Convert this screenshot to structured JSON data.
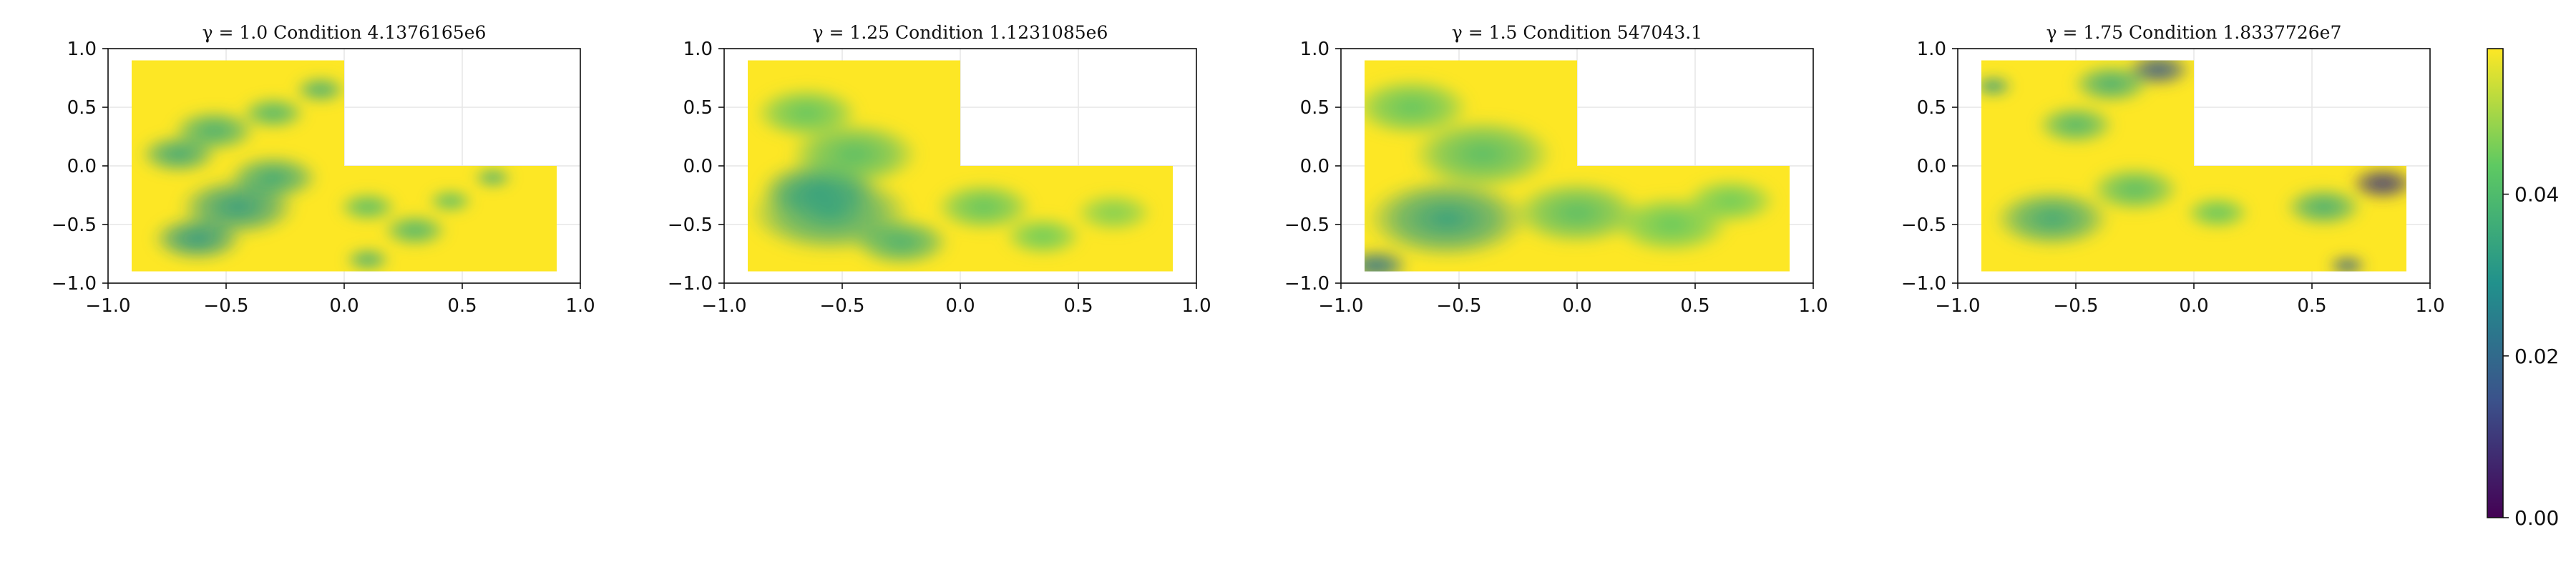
{
  "figure": {
    "type": "heatmap",
    "colormap": "viridis",
    "colormap_stops": [
      "#440154",
      "#3b528b",
      "#21918c",
      "#5ec962",
      "#fde725"
    ],
    "grid_color": "#e6e6e6"
  },
  "chart_data": [
    {
      "type": "heatmap",
      "title": "γ = 1.0  Condition 4.1376165e6",
      "xlim": [
        -1.0,
        1.0
      ],
      "ylim": [
        -1.0,
        1.0
      ],
      "x_ticks": [
        "−1.0",
        "−0.5",
        "0.0",
        "0.5",
        "1.0"
      ],
      "y_ticks": [
        "−1.0",
        "−0.5",
        "0.0",
        "0.5",
        "1.0"
      ],
      "domain": "L-shape: [-0.9,0.9]x[-0.9,0] ∪ [-0.9,0]x[0,0.9]",
      "blobs": [
        {
          "x": -0.62,
          "y": -0.62,
          "r": 0.14,
          "v": 0.03
        },
        {
          "x": -0.45,
          "y": -0.35,
          "r": 0.18,
          "v": 0.031
        },
        {
          "x": -0.3,
          "y": -0.1,
          "r": 0.14,
          "v": 0.034
        },
        {
          "x": -0.7,
          "y": 0.1,
          "r": 0.12,
          "v": 0.034
        },
        {
          "x": -0.55,
          "y": 0.3,
          "r": 0.13,
          "v": 0.036
        },
        {
          "x": -0.3,
          "y": 0.45,
          "r": 0.1,
          "v": 0.038
        },
        {
          "x": -0.1,
          "y": 0.65,
          "r": 0.08,
          "v": 0.036
        },
        {
          "x": 0.1,
          "y": -0.8,
          "r": 0.07,
          "v": 0.036
        },
        {
          "x": 0.3,
          "y": -0.55,
          "r": 0.1,
          "v": 0.038
        },
        {
          "x": 0.1,
          "y": -0.35,
          "r": 0.09,
          "v": 0.04
        },
        {
          "x": 0.63,
          "y": -0.1,
          "r": 0.06,
          "v": 0.036
        },
        {
          "x": 0.45,
          "y": -0.3,
          "r": 0.07,
          "v": 0.04
        }
      ]
    },
    {
      "type": "heatmap",
      "title": "γ = 1.25  Condition 1.1231085e6",
      "xlim": [
        -1.0,
        1.0
      ],
      "ylim": [
        -1.0,
        1.0
      ],
      "x_ticks": [
        "−1.0",
        "−0.5",
        "0.0",
        "0.5",
        "1.0"
      ],
      "y_ticks": [
        "−1.0",
        "−0.5",
        "0.0",
        "0.5",
        "1.0"
      ],
      "domain": "L-shape: [-0.9,0.9]x[-0.9,0] ∪ [-0.9,0]x[0,0.9]",
      "blobs": [
        {
          "x": -0.55,
          "y": -0.4,
          "r": 0.25,
          "v": 0.034
        },
        {
          "x": -0.6,
          "y": -0.2,
          "r": 0.18,
          "v": 0.033
        },
        {
          "x": -0.45,
          "y": 0.1,
          "r": 0.2,
          "v": 0.04
        },
        {
          "x": -0.65,
          "y": 0.45,
          "r": 0.16,
          "v": 0.042
        },
        {
          "x": -0.25,
          "y": -0.65,
          "r": 0.15,
          "v": 0.036
        },
        {
          "x": 0.1,
          "y": -0.35,
          "r": 0.15,
          "v": 0.042
        },
        {
          "x": 0.35,
          "y": -0.6,
          "r": 0.12,
          "v": 0.044
        },
        {
          "x": 0.65,
          "y": -0.4,
          "r": 0.12,
          "v": 0.046
        }
      ]
    },
    {
      "type": "heatmap",
      "title": "γ = 1.5  Condition 547043.1",
      "xlim": [
        -1.0,
        1.0
      ],
      "ylim": [
        -1.0,
        1.0
      ],
      "x_ticks": [
        "−1.0",
        "−0.5",
        "0.0",
        "0.5",
        "1.0"
      ],
      "y_ticks": [
        "−1.0",
        "−0.5",
        "0.0",
        "0.5",
        "1.0"
      ],
      "domain": "L-shape: [-0.9,0.9]x[-0.9,0] ∪ [-0.9,0]x[0,0.9]",
      "blobs": [
        {
          "x": -0.55,
          "y": -0.45,
          "r": 0.25,
          "v": 0.032
        },
        {
          "x": -0.85,
          "y": -0.85,
          "r": 0.1,
          "v": 0.022
        },
        {
          "x": -0.4,
          "y": 0.1,
          "r": 0.22,
          "v": 0.04
        },
        {
          "x": -0.7,
          "y": 0.5,
          "r": 0.18,
          "v": 0.042
        },
        {
          "x": 0.0,
          "y": -0.4,
          "r": 0.2,
          "v": 0.04
        },
        {
          "x": 0.4,
          "y": -0.5,
          "r": 0.18,
          "v": 0.043
        },
        {
          "x": 0.65,
          "y": -0.3,
          "r": 0.14,
          "v": 0.044
        }
      ]
    },
    {
      "type": "heatmap",
      "title": "γ = 1.75  Condition 1.8337726e7",
      "xlim": [
        -1.0,
        1.0
      ],
      "ylim": [
        -1.0,
        1.0
      ],
      "x_ticks": [
        "−1.0",
        "−0.5",
        "0.0",
        "0.5",
        "1.0"
      ],
      "y_ticks": [
        "−1.0",
        "−0.5",
        "0.0",
        "0.5",
        "1.0"
      ],
      "domain": "L-shape: [-0.9,0.9]x[-0.9,0] ∪ [-0.9,0]x[0,0.9]",
      "blobs": [
        {
          "x": -0.15,
          "y": 0.82,
          "r": 0.1,
          "v": 0.016
        },
        {
          "x": -0.35,
          "y": 0.7,
          "r": 0.12,
          "v": 0.036
        },
        {
          "x": -0.85,
          "y": 0.68,
          "r": 0.06,
          "v": 0.03
        },
        {
          "x": -0.5,
          "y": 0.35,
          "r": 0.12,
          "v": 0.038
        },
        {
          "x": -0.6,
          "y": -0.45,
          "r": 0.18,
          "v": 0.034
        },
        {
          "x": -0.25,
          "y": -0.2,
          "r": 0.14,
          "v": 0.04
        },
        {
          "x": 0.8,
          "y": -0.15,
          "r": 0.1,
          "v": 0.01
        },
        {
          "x": 0.55,
          "y": -0.35,
          "r": 0.12,
          "v": 0.036
        },
        {
          "x": 0.1,
          "y": -0.4,
          "r": 0.1,
          "v": 0.042
        },
        {
          "x": 0.65,
          "y": -0.85,
          "r": 0.06,
          "v": 0.018
        }
      ]
    }
  ],
  "colorbar": {
    "ticks": [
      "0.00",
      "0.02",
      "0.04"
    ],
    "tick_values": [
      0.0,
      0.02,
      0.04
    ],
    "vmin": 0.0,
    "vmax": 0.058
  }
}
